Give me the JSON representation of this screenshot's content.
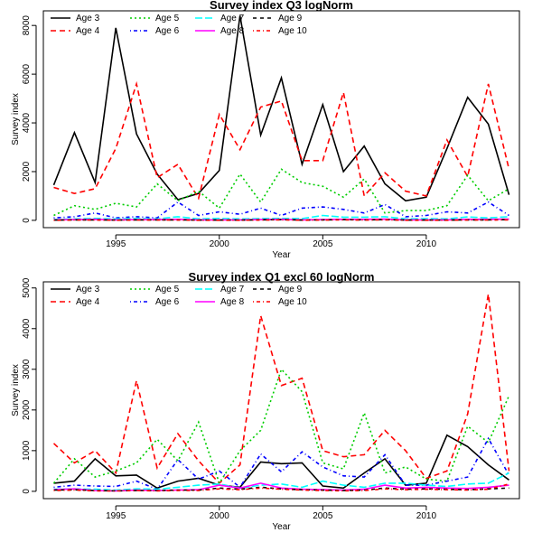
{
  "chart_data": [
    {
      "type": "line",
      "title": "Survey index Q3 logNorm",
      "xlabel": "Year",
      "ylabel": "Survey index",
      "xlim": [
        1991.5,
        2014.5
      ],
      "ylim": [
        -300,
        8600
      ],
      "xticks": [
        1995,
        2000,
        2005,
        2010
      ],
      "yticks": [
        0,
        2000,
        4000,
        6000,
        8000
      ],
      "legend": "top-left",
      "grid": false,
      "x": [
        1992,
        1993,
        1994,
        1995,
        1996,
        1997,
        1998,
        1999,
        2000,
        2001,
        2002,
        2003,
        2004,
        2005,
        2006,
        2007,
        2008,
        2009,
        2010,
        2011,
        2012,
        2013,
        2014
      ],
      "series": [
        {
          "name": "Age 3",
          "color": "#000000",
          "dash": "solid",
          "values": [
            1450,
            3600,
            1550,
            7900,
            3550,
            1900,
            850,
            1100,
            2050,
            8400,
            3500,
            5850,
            2300,
            4750,
            2000,
            3050,
            1500,
            800,
            950,
            2950,
            5050,
            3950,
            1050
          ]
        },
        {
          "name": "Age 4",
          "color": "#ff0000",
          "dash": "long",
          "values": [
            1350,
            1100,
            1300,
            2950,
            5600,
            1750,
            2300,
            900,
            4350,
            2900,
            4650,
            4900,
            2450,
            2450,
            5250,
            1000,
            1950,
            1200,
            1000,
            3300,
            1800,
            5600,
            2100
          ]
        },
        {
          "name": "Age 5",
          "color": "#00cd00",
          "dash": "dot",
          "values": [
            200,
            600,
            450,
            700,
            550,
            1500,
            800,
            1200,
            500,
            1900,
            750,
            2100,
            1550,
            1400,
            950,
            1700,
            300,
            400,
            400,
            600,
            1850,
            800,
            1300
          ]
        },
        {
          "name": "Age 6",
          "color": "#0000ff",
          "dash": "dashdot",
          "values": [
            100,
            150,
            300,
            100,
            150,
            100,
            750,
            200,
            350,
            250,
            500,
            200,
            500,
            550,
            450,
            300,
            650,
            150,
            200,
            350,
            300,
            750,
            200
          ]
        },
        {
          "name": "Age 7",
          "color": "#00ffff",
          "dash": "longdash",
          "values": [
            30,
            60,
            80,
            60,
            80,
            60,
            150,
            60,
            80,
            60,
            70,
            80,
            70,
            200,
            130,
            130,
            150,
            60,
            70,
            60,
            140,
            100,
            150
          ]
        },
        {
          "name": "Age 8",
          "color": "#ff00ff",
          "dash": "solid",
          "values": [
            20,
            30,
            40,
            20,
            30,
            30,
            40,
            20,
            20,
            20,
            30,
            40,
            20,
            30,
            40,
            40,
            50,
            20,
            20,
            20,
            40,
            40,
            50
          ]
        },
        {
          "name": "Age 9",
          "color": "#000000",
          "dash": "shortdash",
          "values": [
            10,
            20,
            20,
            10,
            20,
            20,
            20,
            10,
            10,
            10,
            20,
            30,
            10,
            20,
            30,
            20,
            30,
            10,
            10,
            10,
            20,
            20,
            30
          ]
        },
        {
          "name": "Age 10",
          "color": "#ff0000",
          "dash": "dotdash",
          "values": [
            5,
            10,
            10,
            5,
            10,
            10,
            10,
            5,
            5,
            5,
            10,
            20,
            5,
            10,
            20,
            10,
            20,
            5,
            5,
            5,
            10,
            10,
            20
          ]
        }
      ]
    },
    {
      "type": "line",
      "title": "Survey index Q1 excl 60 logNorm",
      "xlabel": "Year",
      "ylabel": "Survey index",
      "xlim": [
        1991.5,
        2014.5
      ],
      "ylim": [
        -180,
        5150
      ],
      "xticks": [
        1995,
        2000,
        2005,
        2010
      ],
      "yticks": [
        0,
        1000,
        2000,
        3000,
        4000,
        5000
      ],
      "legend": "top-left",
      "grid": false,
      "x": [
        1992,
        1993,
        1994,
        1995,
        1996,
        1997,
        1998,
        1999,
        2000,
        2001,
        2002,
        2003,
        2004,
        2005,
        2006,
        2007,
        2008,
        2009,
        2010,
        2011,
        2012,
        2013,
        2014
      ],
      "series": [
        {
          "name": "Age 3",
          "color": "#000000",
          "dash": "solid",
          "values": [
            200,
            250,
            800,
            380,
            400,
            80,
            250,
            320,
            150,
            100,
            720,
            680,
            700,
            130,
            80,
            450,
            800,
            150,
            200,
            1380,
            1100,
            650,
            280
          ]
        },
        {
          "name": "Age 4",
          "color": "#ff0000",
          "dash": "long",
          "values": [
            1180,
            700,
            1000,
            450,
            2720,
            570,
            1420,
            750,
            200,
            650,
            4320,
            2600,
            2780,
            1000,
            850,
            900,
            1500,
            1000,
            320,
            500,
            1900,
            4850,
            500
          ]
        },
        {
          "name": "Age 5",
          "color": "#00cd00",
          "dash": "dot",
          "values": [
            200,
            800,
            350,
            500,
            700,
            1280,
            750,
            1700,
            200,
            1000,
            1500,
            3000,
            2450,
            700,
            550,
            1930,
            450,
            600,
            300,
            250,
            1600,
            1200,
            2350
          ]
        },
        {
          "name": "Age 6",
          "color": "#0000ff",
          "dash": "dashdot",
          "values": [
            100,
            150,
            130,
            120,
            250,
            50,
            780,
            300,
            500,
            100,
            920,
            480,
            970,
            600,
            380,
            350,
            900,
            150,
            150,
            250,
            350,
            1300,
            400
          ]
        },
        {
          "name": "Age 7",
          "color": "#00ffff",
          "dash": "longdash",
          "values": [
            50,
            60,
            50,
            30,
            60,
            50,
            100,
            150,
            180,
            80,
            150,
            180,
            100,
            250,
            150,
            100,
            200,
            200,
            150,
            120,
            180,
            200,
            450
          ]
        },
        {
          "name": "Age 8",
          "color": "#ff00ff",
          "dash": "solid",
          "values": [
            40,
            60,
            20,
            10,
            30,
            20,
            30,
            40,
            150,
            80,
            200,
            80,
            50,
            40,
            30,
            50,
            150,
            80,
            100,
            80,
            70,
            100,
            150
          ]
        },
        {
          "name": "Age 9",
          "color": "#000000",
          "dash": "shortdash",
          "values": [
            30,
            40,
            20,
            10,
            20,
            20,
            30,
            30,
            80,
            50,
            100,
            60,
            40,
            30,
            20,
            30,
            80,
            50,
            60,
            50,
            40,
            60,
            80
          ]
        },
        {
          "name": "Age 10",
          "color": "#ff0000",
          "dash": "dotdash",
          "values": [
            20,
            30,
            10,
            10,
            20,
            10,
            20,
            20,
            60,
            40,
            80,
            50,
            30,
            20,
            10,
            20,
            60,
            40,
            50,
            40,
            30,
            50,
            180
          ]
        }
      ]
    }
  ]
}
